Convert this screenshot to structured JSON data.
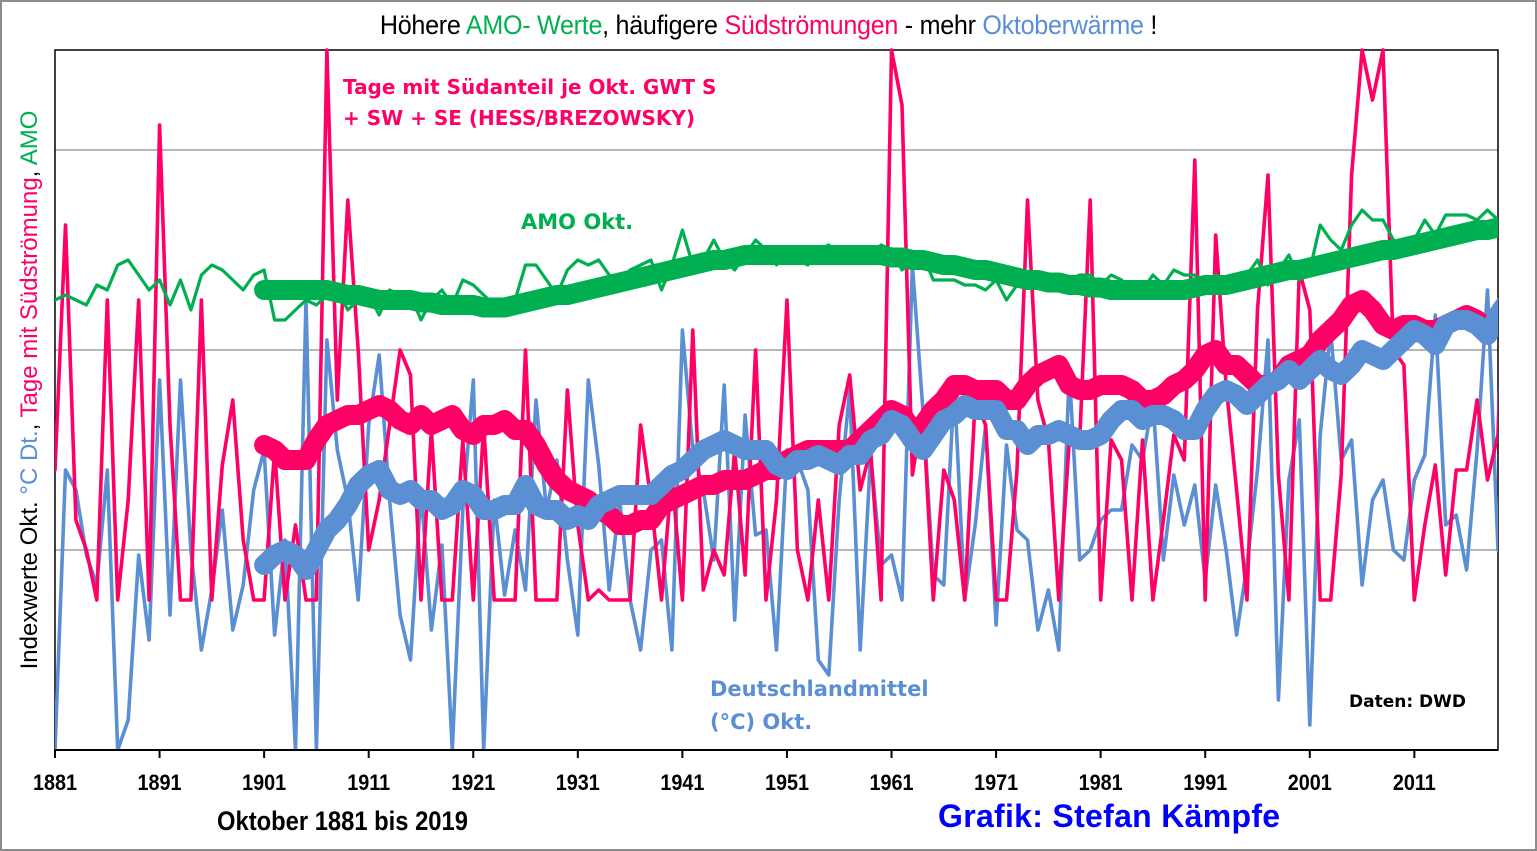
{
  "title": {
    "parts": [
      {
        "text": "Höhere ",
        "color": "black"
      },
      {
        "text": "AMO- Werte",
        "color": "green"
      },
      {
        "text": ", häufigere ",
        "color": "black"
      },
      {
        "text": "Südströmungen",
        "color": "pink"
      },
      {
        "text": " - mehr ",
        "color": "black"
      },
      {
        "text": "Oktoberwärme",
        "color": "blue"
      },
      {
        "text": " !",
        "color": "black"
      }
    ]
  },
  "ylabel": {
    "parts": [
      {
        "text": "Indexwerte Okt. ",
        "color": "black"
      },
      {
        "text": "°C Dt.",
        "color": "blue"
      },
      {
        "text": ", ",
        "color": "black"
      },
      {
        "text": "Tage mit Südströmung",
        "color": "pink"
      },
      {
        "text": ", ",
        "color": "black"
      },
      {
        "text": "AMO",
        "color": "green"
      }
    ]
  },
  "annotations": {
    "south_line1": "Tage mit Südanteil je Okt. GWT S",
    "south_line2": "+ SW + SE (HESS/BREZOWSKY)",
    "amo": "AMO Okt.",
    "de_line1": "Deutschlandmittel",
    "de_line2": "(°C) Okt.",
    "source": "Daten: DWD"
  },
  "xlabel": "Oktober 1881 bis 2019",
  "credit": "Grafik: Stefan Kämpfe",
  "colors": {
    "green": "#00b050",
    "pink": "#ff0066",
    "blue": "#5b8fd3",
    "grid": "#8c8c8c",
    "credit": "#0000ff"
  },
  "chart_data": {
    "type": "line",
    "title": "Höhere AMO- Werte, häufigere Südströmungen - mehr Oktoberwärme !",
    "xlabel": "Oktober 1881 bis 2019",
    "ylabel": "Indexwerte Okt. °C Dt., Tage mit Südströmung, AMO",
    "x_start": 1881,
    "x_end": 2019,
    "xlim": [
      1881,
      2019
    ],
    "ylim": [
      0,
      14
    ],
    "y_unit_note": "relative index units (no y tick labels shown)",
    "x_ticks": [
      1881,
      1891,
      1901,
      1911,
      1921,
      1931,
      1941,
      1951,
      1961,
      1971,
      1981,
      1991,
      2001,
      2011
    ],
    "y_grid": [
      4,
      8,
      12
    ],
    "grid": true,
    "series": [
      {
        "name": "Deutschlandmittel (°C) Okt.",
        "color": "blue",
        "kind": "raw",
        "x_start": 1881,
        "values": [
          0.0,
          5.6,
          5.2,
          3.9,
          3.3,
          5.6,
          0.0,
          0.6,
          3.9,
          2.2,
          7.4,
          2.7,
          7.4,
          4.0,
          2.0,
          3.2,
          4.8,
          2.4,
          3.3,
          5.2,
          6.0,
          2.3,
          4.2,
          0.0,
          9.0,
          0.0,
          8.2,
          6.0,
          5.0,
          3.0,
          6.5,
          7.9,
          5.0,
          2.7,
          1.8,
          5.2,
          2.4,
          4.1,
          0.0,
          4.8,
          7.4,
          0.0,
          5.0,
          3.1,
          4.4,
          3.2,
          7.0,
          4.8,
          5.8,
          3.8,
          2.3,
          7.4,
          5.7,
          3.2,
          5.0,
          3.0,
          2.0,
          4.0,
          4.2,
          2.0,
          8.4,
          6.0,
          5.2,
          3.8,
          7.3,
          2.6,
          6.7,
          4.3,
          4.4,
          2.0,
          6.0,
          5.8,
          5.2,
          1.8,
          1.5,
          5.0,
          7.2,
          2.0,
          5.9,
          3.7,
          3.9,
          3.0,
          9.7,
          6.8,
          3.5,
          3.3,
          7.3,
          3.0,
          4.5,
          6.5,
          2.5,
          6.1,
          4.4,
          4.2,
          2.4,
          3.2,
          2.0,
          7.6,
          3.8,
          4.0,
          4.6,
          4.8,
          4.8,
          6.1,
          5.8,
          7.0,
          3.8,
          5.5,
          4.5,
          5.3,
          3.4,
          5.3,
          4.0,
          2.3,
          3.7,
          5.6,
          8.2,
          1.0,
          5.4,
          6.6,
          0.5,
          6.3,
          8.4,
          5.8,
          6.2,
          3.3,
          5.0,
          5.4,
          4.0,
          3.8,
          5.4,
          5.9,
          8.7,
          4.5,
          4.7,
          3.6,
          6.0,
          9.2,
          4.0,
          7.0,
          4.8,
          4.6,
          9.1,
          7.4,
          6.5,
          8.8,
          3.9,
          4.2,
          6.6,
          7.7,
          6.8
        ]
      },
      {
        "name": "Deutschlandmittel (°C) Okt. – geglättet",
        "color": "blue",
        "kind": "smoothed",
        "x_start": 1901,
        "values": [
          3.7,
          3.9,
          4.0,
          3.9,
          3.6,
          4.0,
          4.4,
          4.6,
          4.9,
          5.3,
          5.5,
          5.6,
          5.2,
          5.1,
          5.2,
          5.0,
          5.0,
          4.8,
          4.9,
          5.2,
          5.1,
          4.8,
          4.8,
          4.9,
          4.9,
          5.3,
          4.9,
          4.8,
          4.8,
          4.6,
          4.7,
          4.6,
          4.9,
          5.0,
          5.1,
          5.1,
          5.1,
          5.1,
          5.3,
          5.5,
          5.6,
          5.8,
          6.0,
          6.1,
          6.2,
          6.1,
          6.0,
          6.0,
          6.0,
          5.7,
          5.6,
          5.8,
          5.8,
          5.9,
          5.8,
          5.7,
          5.9,
          5.9,
          6.2,
          6.3,
          6.6,
          6.5,
          6.2,
          6.0,
          6.3,
          6.6,
          6.7,
          6.9,
          6.8,
          6.8,
          6.8,
          6.4,
          6.4,
          6.1,
          6.3,
          6.3,
          6.4,
          6.3,
          6.2,
          6.2,
          6.3,
          6.6,
          6.8,
          6.8,
          6.6,
          6.7,
          6.7,
          6.6,
          6.4,
          6.4,
          6.8,
          7.1,
          7.2,
          7.1,
          6.9,
          7.1,
          7.3,
          7.4,
          7.6,
          7.4,
          7.6,
          7.8,
          7.6,
          7.5,
          7.7,
          8.0,
          7.9,
          7.8,
          8.0,
          8.2,
          8.4,
          8.3,
          8.1,
          8.5,
          8.6,
          8.6,
          8.5,
          8.3,
          8.7,
          9.0,
          9.2
        ]
      },
      {
        "name": "Tage mit Südanteil je Okt. GWT S + SW + SE (HESS/BREZOWSKY)",
        "color": "pink",
        "kind": "raw",
        "x_start": 1881,
        "values": [
          5.6,
          10.5,
          4.6,
          4.0,
          3.0,
          9.0,
          3.0,
          5.0,
          9.0,
          3.0,
          12.5,
          6.5,
          3.0,
          3.0,
          9.0,
          3.0,
          5.7,
          7.0,
          4.2,
          3.0,
          3.0,
          6.0,
          3.0,
          4.5,
          3.0,
          3.0,
          14.0,
          7.0,
          11.0,
          8.0,
          4.0,
          5.0,
          6.5,
          8.0,
          7.5,
          3.0,
          6.4,
          3.0,
          3.0,
          6.2,
          3.0,
          6.5,
          3.0,
          3.0,
          3.0,
          8.0,
          3.0,
          3.0,
          3.0,
          7.2,
          4.5,
          3.0,
          3.2,
          3.0,
          3.0,
          3.0,
          6.5,
          5.0,
          3.0,
          5.5,
          3.0,
          8.4,
          3.2,
          4.0,
          3.5,
          6.0,
          3.5,
          8.0,
          3.0,
          5.0,
          9.0,
          4.0,
          3.0,
          5.0,
          3.0,
          6.5,
          7.5,
          5.2,
          6.0,
          3.0,
          14.0,
          12.9,
          5.5,
          6.8,
          3.0,
          5.6,
          5.0,
          3.0,
          7.0,
          6.5,
          3.0,
          3.0,
          5.6,
          11.0,
          7.0,
          6.2,
          3.0,
          6.2,
          6.2,
          11.0,
          3.0,
          6.2,
          5.8,
          3.0,
          6.2,
          3.0,
          4.6,
          6.3,
          5.8,
          11.8,
          3.0,
          10.3,
          7.3,
          5.2,
          3.0,
          8.8,
          11.5,
          5.5,
          3.0,
          9.6,
          8.8,
          3.0,
          3.0,
          5.5,
          11.5,
          14.0,
          13.0,
          14.0,
          8.0,
          7.7,
          3.0,
          4.5,
          5.7,
          3.5,
          5.6,
          5.6,
          7.0,
          5.4,
          6.3,
          12.5,
          5.8,
          5.0,
          2.9,
          5.6,
          9.5,
          9.2
        ]
      },
      {
        "name": "Tage mit Südanteil – geglättet",
        "color": "pink",
        "kind": "smoothed",
        "x_start": 1901,
        "values": [
          6.1,
          6.0,
          5.8,
          5.8,
          5.8,
          6.2,
          6.5,
          6.6,
          6.7,
          6.7,
          6.8,
          6.9,
          6.8,
          6.6,
          6.5,
          6.7,
          6.5,
          6.6,
          6.7,
          6.4,
          6.3,
          6.5,
          6.5,
          6.6,
          6.4,
          6.4,
          6.1,
          5.7,
          5.4,
          5.2,
          5.1,
          5.0,
          4.8,
          4.7,
          4.5,
          4.5,
          4.6,
          4.6,
          4.9,
          5.0,
          5.1,
          5.2,
          5.3,
          5.3,
          5.4,
          5.4,
          5.4,
          5.5,
          5.6,
          5.6,
          5.8,
          5.9,
          6.0,
          6.0,
          6.0,
          6.0,
          6.0,
          6.2,
          6.4,
          6.6,
          6.8,
          6.7,
          6.4,
          6.5,
          6.8,
          7.0,
          7.3,
          7.3,
          7.2,
          7.2,
          7.2,
          7.0,
          7.0,
          7.3,
          7.5,
          7.6,
          7.7,
          7.3,
          7.2,
          7.2,
          7.3,
          7.3,
          7.3,
          7.2,
          7.0,
          7.0,
          7.1,
          7.3,
          7.4,
          7.6,
          7.9,
          8.0,
          7.7,
          7.7,
          7.5,
          7.3,
          7.3,
          7.4,
          7.7,
          7.8,
          7.9,
          8.2,
          8.4,
          8.6,
          8.9,
          9.0,
          8.8,
          8.5,
          8.4,
          8.5,
          8.5,
          8.4,
          8.4,
          8.5,
          8.6,
          8.7,
          8.6,
          8.4,
          8.6,
          8.8
        ]
      },
      {
        "name": "AMO Okt.",
        "color": "green",
        "kind": "raw",
        "x_start": 1881,
        "values": [
          9.0,
          9.1,
          9.0,
          8.9,
          9.3,
          9.2,
          9.7,
          9.8,
          9.5,
          9.2,
          9.4,
          8.9,
          9.4,
          8.8,
          9.5,
          9.7,
          9.6,
          9.4,
          9.2,
          9.5,
          9.6,
          8.6,
          8.6,
          8.8,
          9.0,
          8.9,
          9.1,
          9.2,
          8.8,
          9.0,
          9.1,
          8.7,
          9.2,
          9.1,
          9.1,
          8.6,
          9.0,
          9.2,
          8.9,
          9.4,
          9.3,
          9.1,
          8.9,
          9.0,
          9.0,
          9.7,
          9.7,
          9.4,
          9.1,
          9.6,
          9.8,
          9.7,
          9.8,
          9.5,
          9.3,
          9.6,
          9.7,
          9.8,
          9.2,
          9.7,
          10.4,
          9.7,
          9.8,
          10.2,
          9.8,
          9.6,
          9.9,
          10.2,
          10.0,
          9.7,
          10.0,
          9.8,
          9.7,
          10.0,
          10.1,
          9.9,
          10.0,
          9.9,
          9.9,
          10.1,
          10.0,
          9.6,
          9.8,
          9.9,
          9.4,
          9.4,
          9.4,
          9.3,
          9.3,
          9.2,
          9.4,
          9.0,
          9.3,
          9.4,
          9.5,
          9.5,
          9.4,
          9.4,
          9.5,
          9.5,
          9.3,
          9.5,
          9.4,
          9.1,
          9.2,
          9.5,
          9.3,
          9.6,
          9.5,
          9.5,
          9.3,
          9.5,
          9.4,
          9.4,
          9.5,
          9.8,
          9.3,
          9.6,
          9.9,
          9.4,
          9.6,
          10.5,
          10.2,
          10.0,
          10.5,
          10.8,
          10.6,
          10.6,
          10.2,
          10.1,
          10.2,
          10.6,
          10.3,
          10.7,
          10.7,
          10.7,
          10.6,
          10.8,
          10.6
        ]
      },
      {
        "name": "AMO Okt. – geglättet",
        "color": "green",
        "kind": "smoothed",
        "x_start": 1901,
        "values": [
          9.2,
          9.2,
          9.2,
          9.2,
          9.2,
          9.2,
          9.2,
          9.15,
          9.1,
          9.1,
          9.05,
          9.0,
          9.0,
          9.0,
          9.0,
          8.95,
          8.95,
          8.9,
          8.9,
          8.9,
          8.9,
          8.85,
          8.85,
          8.85,
          8.9,
          8.95,
          9.0,
          9.05,
          9.1,
          9.1,
          9.15,
          9.2,
          9.25,
          9.3,
          9.35,
          9.4,
          9.45,
          9.5,
          9.55,
          9.6,
          9.65,
          9.7,
          9.75,
          9.8,
          9.8,
          9.85,
          9.9,
          9.9,
          9.9,
          9.9,
          9.9,
          9.9,
          9.9,
          9.9,
          9.9,
          9.9,
          9.9,
          9.9,
          9.9,
          9.9,
          9.85,
          9.85,
          9.8,
          9.8,
          9.75,
          9.7,
          9.7,
          9.65,
          9.6,
          9.6,
          9.55,
          9.5,
          9.45,
          9.4,
          9.4,
          9.35,
          9.35,
          9.3,
          9.3,
          9.25,
          9.25,
          9.2,
          9.2,
          9.2,
          9.2,
          9.2,
          9.2,
          9.2,
          9.2,
          9.25,
          9.3,
          9.3,
          9.3,
          9.35,
          9.4,
          9.45,
          9.5,
          9.55,
          9.6,
          9.6,
          9.65,
          9.7,
          9.75,
          9.8,
          9.85,
          9.9,
          9.95,
          10.0,
          10.0,
          10.05,
          10.1,
          10.15,
          10.2,
          10.25,
          10.3,
          10.35,
          10.4,
          10.4,
          10.45,
          10.45
        ]
      }
    ],
    "legend": "none (inline annotations)",
    "annotations": [
      "Tage mit Südanteil je Okt. GWT S + SW + SE (HESS/BREZOWSKY)",
      "AMO Okt.",
      "Deutschlandmittel (°C) Okt.",
      "Daten: DWD"
    ]
  }
}
